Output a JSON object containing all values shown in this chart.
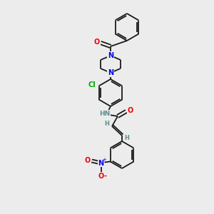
{
  "background_color": "#ececec",
  "bond_color": "#1a1a1a",
  "atom_colors": {
    "N": "#0000ee",
    "O": "#ee0000",
    "Cl": "#00aa00",
    "C": "#1a1a1a",
    "H": "#5a9090"
  },
  "figsize": [
    3.0,
    3.0
  ],
  "dpi": 100,
  "lw": 1.3
}
